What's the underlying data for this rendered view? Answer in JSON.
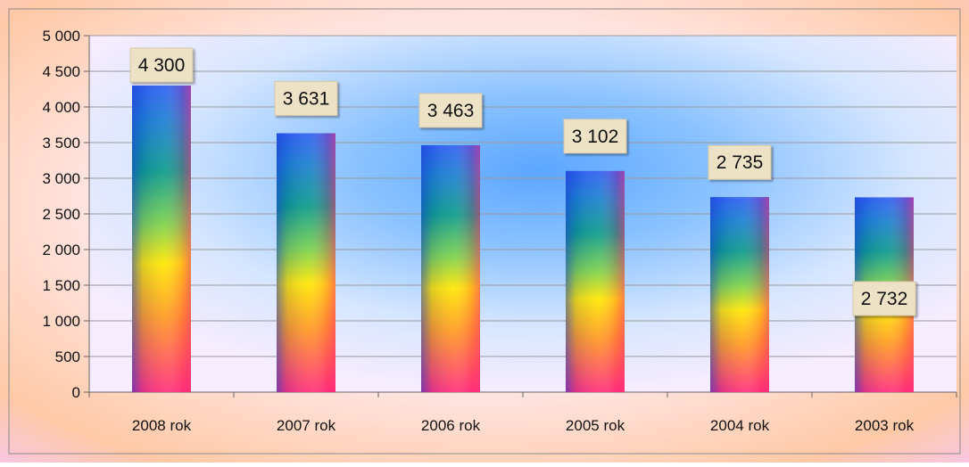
{
  "chart_data": {
    "type": "bar",
    "title": "",
    "xlabel": "",
    "ylabel": "",
    "categories": [
      "2008 rok",
      "2007 rok",
      "2006 rok",
      "2005 rok",
      "2004 rok",
      "2003 rok"
    ],
    "values": [
      4300,
      3631,
      3463,
      3102,
      2735,
      2732
    ],
    "data_labels": [
      "4 300",
      "3 631",
      "3 463",
      "3 102",
      "2 735",
      "2 732"
    ],
    "ylim": [
      0,
      5000
    ],
    "y_ticks": [
      0,
      500,
      1000,
      1500,
      2000,
      2500,
      3000,
      3500,
      4000,
      4500,
      5000
    ],
    "y_tick_labels": [
      "0",
      "500",
      "1 000",
      "1 500",
      "2 000",
      "2 500",
      "3 000",
      "3 500",
      "4 000",
      "4 500",
      "5 000"
    ],
    "grid": true,
    "legend": "none",
    "colors": {
      "bar_top": "#2e5ff0",
      "bar_mid_teal": "#0a9a8a",
      "bar_yellow": "#ffe600",
      "bar_orange": "#ff8a1e",
      "bar_bottom_pink": "#ff2d7a",
      "plot_center": "#7fb6ff",
      "plot_edge": "#f6e7ff",
      "outer_background": "#ffd9d4",
      "label_box": "#ede2c6",
      "gridline": "#9a9a9a"
    }
  }
}
